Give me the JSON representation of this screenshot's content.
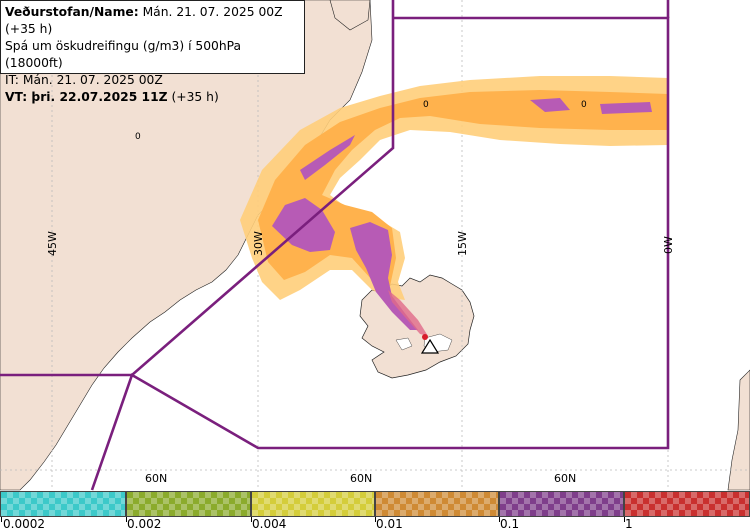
{
  "header": {
    "line1_label": "Veðurstofan/Name:",
    "line1_value": " Mán. 21. 07. 2025 00Z (+35 h)",
    "line2": "Spá um öskudreifingu (g/m3) í 500hPa (18000ft)",
    "line3": "IT: Mán. 21. 07. 2025 00Z",
    "line4_label": "VT: þri. 22.07.2025 11Z",
    "line4_value": " (+35 h)"
  },
  "map": {
    "longitude_labels": [
      "45W",
      "30W",
      "15W",
      "0W"
    ],
    "latitude_labels": [
      "60N",
      "60N",
      "60N"
    ],
    "contour_labels": [
      "0",
      "0",
      "0"
    ],
    "volcano_icon": "warning-triangle-icon",
    "colors": {
      "land": "#f2e0d3",
      "sea": "#ffffff",
      "fir_boundary": "#7a1f7d",
      "ash_low": "#ffce7a",
      "ash_mid": "#ffb24d",
      "ash_high": "#b75bb5"
    }
  },
  "legend": {
    "labels": [
      "0.0002",
      "0.002",
      "0.004",
      "0.01",
      "0.1",
      "1"
    ],
    "colors": [
      "#3cc9c9",
      "#8bab2c",
      "#d4cd3a",
      "#cf8a34",
      "#7f3e8b",
      "#c9302f"
    ]
  }
}
